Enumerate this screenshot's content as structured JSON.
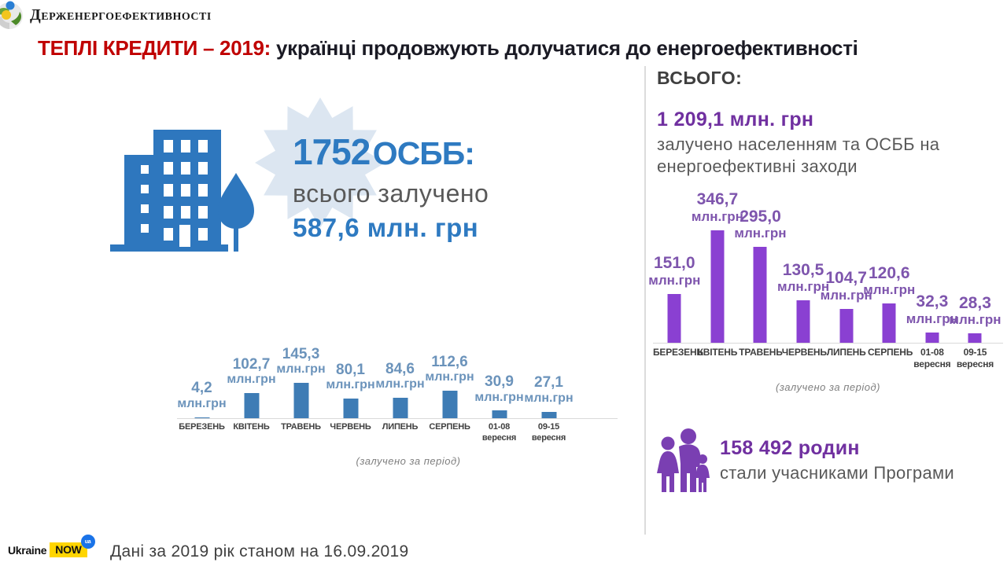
{
  "header": {
    "org_name": "Держенергоефективності",
    "title_red": "ТЕПЛІ КРЕДИТИ – 2019:",
    "title_dark": "українці продовжують долучатися до енергоефективності"
  },
  "left_panel": {
    "headline_number": "1752",
    "headline_label": "ОСББ:",
    "subline": "всього залучено",
    "amount": "587,6 млн. грн"
  },
  "right_panel": {
    "header": "ВСЬОГО:",
    "total_amount": "1 209,1 млн. грн",
    "description": "залучено населенням та ОСББ на енергоефективні заходи",
    "families_count": "158 492 родин",
    "families_caption": "стали учасниками Програми"
  },
  "footer": {
    "brand_ukraine": "Ukraine",
    "brand_now": "NOW",
    "brand_ua": "ua",
    "note": "Дані за 2019 рік станом на 16.09.2019"
  },
  "colors": {
    "title_red": "#c00000",
    "accent_blue": "#2e7ac1",
    "bar_blue": "#3e7cb5",
    "accent_purple": "#7030a0",
    "bar_purple": "#8a40d2",
    "brand_yellow": "#ffd500",
    "brand_circle_blue": "#1a73e8"
  },
  "chart_data": [
    {
      "type": "bar",
      "name": "osbb-attracted-by-period",
      "categories": [
        "БЕРЕЗЕНЬ",
        "КВІТЕНЬ",
        "ТРАВЕНЬ",
        "ЧЕРВЕНЬ",
        "ЛИПЕНЬ",
        "СЕРПЕНЬ",
        "01-08 вересня",
        "09-15 вересня"
      ],
      "values": [
        4.2,
        102.7,
        145.3,
        80.1,
        84.6,
        112.6,
        30.9,
        27.1
      ],
      "value_labels": [
        "4,2",
        "102,7",
        "145,3",
        "80,1",
        "84,6",
        "112,6",
        "30,9",
        "27,1"
      ],
      "unit": "млн.грн",
      "caption": "(залучено  за період)",
      "bar_color": "#3e7cb5",
      "label_color": "#6b93bb",
      "ylim": [
        0,
        160
      ],
      "grid": false,
      "legend": false
    },
    {
      "type": "bar",
      "name": "total-attracted-by-period",
      "categories": [
        "БЕРЕЗЕНЬ",
        "КВІТЕНЬ",
        "ТРАВЕНЬ",
        "ЧЕРВЕНЬ",
        "ЛИПЕНЬ",
        "СЕРПЕНЬ",
        "01-08 вересня",
        "09-15 вересня"
      ],
      "values": [
        151.0,
        346.7,
        295.0,
        130.5,
        104.7,
        120.6,
        32.3,
        28.3
      ],
      "value_labels": [
        "151,0",
        "346,7",
        "295,0",
        "130,5",
        "104,7",
        "120,6",
        "32,3",
        "28,3"
      ],
      "unit": "млн.грн",
      "caption": "(залучено  за період)",
      "bar_color": "#8a40d2",
      "label_color": "#7e55ad",
      "ylim": [
        0,
        380
      ],
      "grid": false,
      "legend": false
    }
  ]
}
